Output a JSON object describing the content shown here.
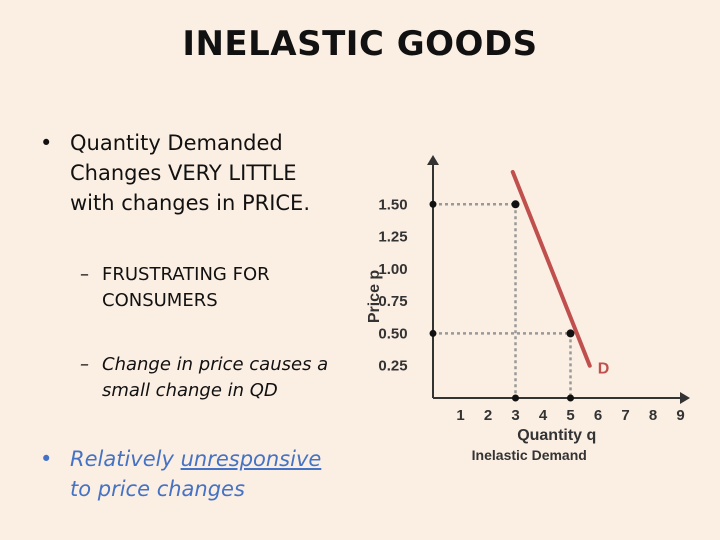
{
  "slide": {
    "title": "INELASTIC GOODS",
    "bullet1_line1": "Quantity Demanded",
    "bullet1_line2": "Changes VERY LITTLE",
    "bullet1_line3": "with changes in PRICE.",
    "sub1_line1": "FRUSTRATING FOR",
    "sub1_line2": "CONSUMERS",
    "sub2_line1": "Change in price causes a",
    "sub2_line2": "small change in QD",
    "bullet2_line1a": "Relatively ",
    "bullet2_line1b": "unresponsive",
    "bullet2_line2": "to price changes",
    "bullet_glyph": "•",
    "dash_glyph": "–"
  },
  "colors": {
    "background": "#FBEEE3",
    "demand_line": "#C0504D",
    "guide": "#999999",
    "accent_text": "#4472C4"
  },
  "chart_data": {
    "type": "line",
    "xlabel": "Quantity q",
    "ylabel": "Price p",
    "caption": "Inelastic Demand",
    "x_ticks": [
      1,
      2,
      3,
      4,
      5,
      6,
      7,
      8,
      9
    ],
    "y_ticks": [
      "0.25",
      "0.50",
      "0.75",
      "1.00",
      "1.25",
      "1.50"
    ],
    "y_tick_values": [
      0.25,
      0.5,
      0.75,
      1.0,
      1.25,
      1.5
    ],
    "xlim": [
      0,
      9.5
    ],
    "ylim": [
      0,
      1.75
    ],
    "series": [
      {
        "name": "D",
        "x": [
          2.9,
          5.7
        ],
        "y": [
          1.75,
          0.25
        ]
      }
    ],
    "points": [
      {
        "x": 3,
        "y": 1.5
      },
      {
        "x": 5,
        "y": 0.5
      }
    ],
    "guide_lines": true,
    "grid": false
  }
}
